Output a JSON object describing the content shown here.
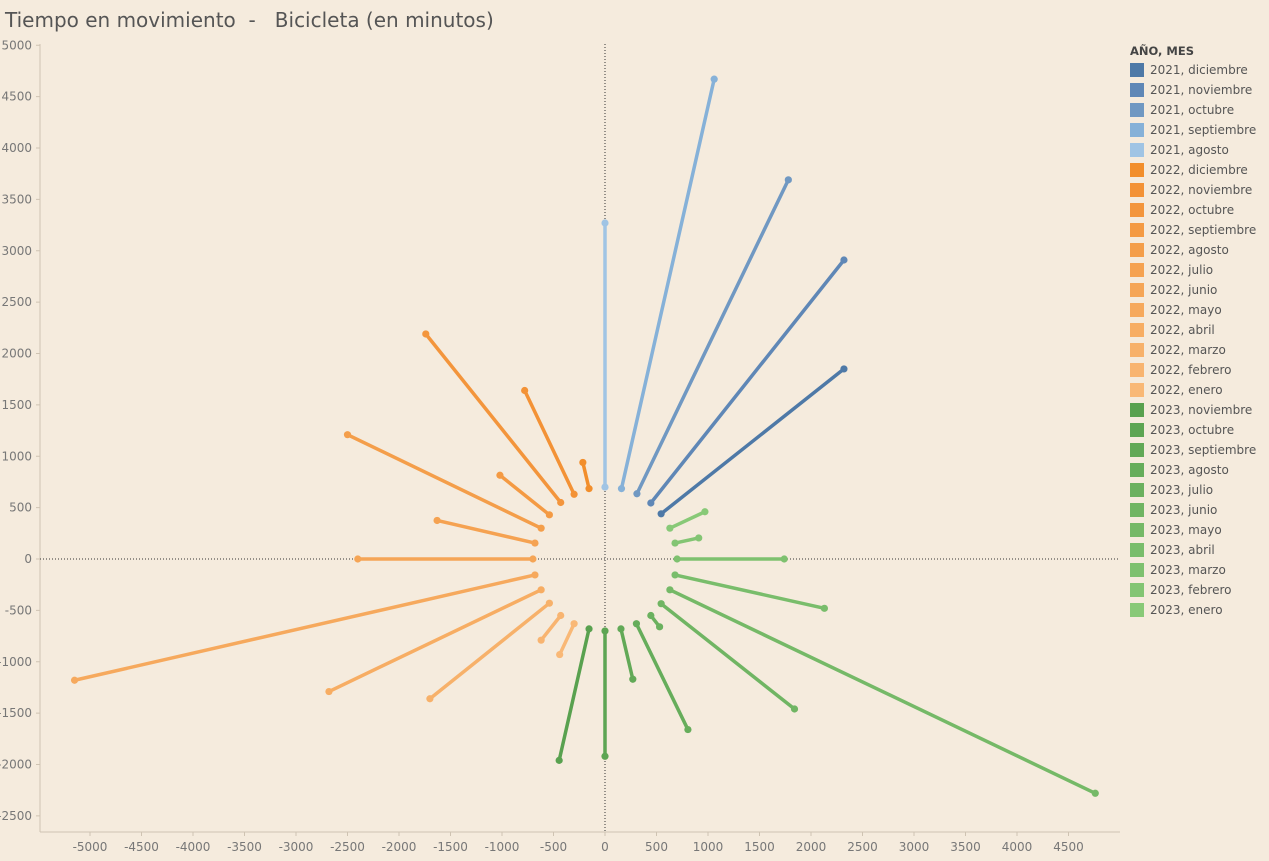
{
  "title": "Tiempo en movimiento  -   Bicicleta (en minutos)",
  "legend": {
    "title": "AÑO, MES",
    "items": [
      {
        "label": "2021, diciembre",
        "color": "#4e79a7"
      },
      {
        "label": "2021, noviembre",
        "color": "#5f87b6"
      },
      {
        "label": "2021, octubre",
        "color": "#7098c2"
      },
      {
        "label": "2021, septiembre",
        "color": "#86b1d8"
      },
      {
        "label": "2021, agosto",
        "color": "#a0c4e4"
      },
      {
        "label": "2022, diciembre",
        "color": "#f28e2b"
      },
      {
        "label": "2022, noviembre",
        "color": "#f39236"
      },
      {
        "label": "2022, octubre",
        "color": "#f3953c"
      },
      {
        "label": "2022, septiembre",
        "color": "#f49a43"
      },
      {
        "label": "2022, agosto",
        "color": "#f49e4a"
      },
      {
        "label": "2022, julio",
        "color": "#f5a251"
      },
      {
        "label": "2022, junio",
        "color": "#f5a556"
      },
      {
        "label": "2022, mayo",
        "color": "#f6a95d"
      },
      {
        "label": "2022, abril",
        "color": "#f7ad63"
      },
      {
        "label": "2022, marzo",
        "color": "#f7b16a"
      },
      {
        "label": "2022, febrero",
        "color": "#f8b470"
      },
      {
        "label": "2022, enero",
        "color": "#f9b876"
      },
      {
        "label": "2023, noviembre",
        "color": "#59a14f"
      },
      {
        "label": "2023, octubre",
        "color": "#5da553"
      },
      {
        "label": "2023, septiembre",
        "color": "#62a957"
      },
      {
        "label": "2023, agosto",
        "color": "#66ad5b"
      },
      {
        "label": "2023, julio",
        "color": "#6bb15f"
      },
      {
        "label": "2023, junio",
        "color": "#70b563"
      },
      {
        "label": "2023, mayo",
        "color": "#75b967"
      },
      {
        "label": "2023, abril",
        "color": "#79bd6b"
      },
      {
        "label": "2023, marzo",
        "color": "#7ec16f"
      },
      {
        "label": "2023, febrero",
        "color": "#83c573"
      },
      {
        "label": "2023, enero",
        "color": "#88c977"
      }
    ]
  },
  "chart_data": {
    "type": "line",
    "title": "Tiempo en movimiento  -   Bicicleta (en minutos)",
    "xlim": [
      -5600,
      5000
    ],
    "ylim": [
      -2700,
      5100
    ],
    "x_ticks": [
      -5000,
      -4500,
      -4000,
      -3500,
      -3000,
      -2500,
      -2000,
      -1500,
      -1000,
      -500,
      0,
      500,
      1000,
      1500,
      2000,
      2500,
      3000,
      3500,
      4000,
      4500
    ],
    "y_ticks": [
      5000,
      4500,
      4000,
      3500,
      3000,
      2500,
      2000,
      1500,
      1000,
      500,
      0,
      -500,
      -1000,
      -1500,
      -2000,
      -2500
    ],
    "series": [
      {
        "name": "2021, agosto",
        "color": "#a0c4e4",
        "points": [
          [
            0,
            700
          ],
          [
            0,
            3270
          ]
        ]
      },
      {
        "name": "2021, septiembre",
        "color": "#86b1d8",
        "points": [
          [
            160,
            685
          ],
          [
            1060,
            4670
          ]
        ]
      },
      {
        "name": "2021, octubre",
        "color": "#7098c2",
        "points": [
          [
            310,
            635
          ],
          [
            1780,
            3690
          ]
        ]
      },
      {
        "name": "2021, noviembre",
        "color": "#5f87b6",
        "points": [
          [
            445,
            545
          ],
          [
            2320,
            2910
          ]
        ]
      },
      {
        "name": "2021, diciembre",
        "color": "#4e79a7",
        "points": [
          [
            545,
            440
          ],
          [
            2320,
            1850
          ]
        ]
      },
      {
        "name": "2022, enero",
        "color": "#f9b876",
        "points": [
          [
            -300,
            -630
          ],
          [
            -440,
            -930
          ]
        ]
      },
      {
        "name": "2022, febrero",
        "color": "#f8b470",
        "points": [
          [
            -430,
            -550
          ],
          [
            -620,
            -790
          ]
        ]
      },
      {
        "name": "2022, marzo",
        "color": "#f7b16a",
        "points": [
          [
            -540,
            -430
          ],
          [
            -1700,
            -1360
          ]
        ]
      },
      {
        "name": "2022, abril",
        "color": "#f7ad63",
        "points": [
          [
            -620,
            -300
          ],
          [
            -2680,
            -1290
          ]
        ]
      },
      {
        "name": "2022, mayo",
        "color": "#f6a95d",
        "points": [
          [
            -680,
            -155
          ],
          [
            -5150,
            -1180
          ]
        ]
      },
      {
        "name": "2022, junio",
        "color": "#f5a556",
        "points": [
          [
            -700,
            0
          ],
          [
            -2400,
            0
          ]
        ]
      },
      {
        "name": "2022, julio",
        "color": "#f5a251",
        "points": [
          [
            -680,
            155
          ],
          [
            -1630,
            375
          ]
        ]
      },
      {
        "name": "2022, agosto",
        "color": "#f49e4a",
        "points": [
          [
            -620,
            300
          ],
          [
            -2500,
            1210
          ]
        ]
      },
      {
        "name": "2022, septiembre",
        "color": "#f49a43",
        "points": [
          [
            -540,
            430
          ],
          [
            -1020,
            815
          ]
        ]
      },
      {
        "name": "2022, octubre",
        "color": "#f3953c",
        "points": [
          [
            -430,
            550
          ],
          [
            -1740,
            2190
          ]
        ]
      },
      {
        "name": "2022, noviembre",
        "color": "#f39236",
        "points": [
          [
            -300,
            630
          ],
          [
            -780,
            1640
          ]
        ]
      },
      {
        "name": "2022, diciembre",
        "color": "#f28e2b",
        "points": [
          [
            -155,
            685
          ],
          [
            -215,
            940
          ]
        ]
      },
      {
        "name": "2023, enero",
        "color": "#88c977",
        "points": [
          [
            630,
            300
          ],
          [
            970,
            460
          ]
        ]
      },
      {
        "name": "2023, febrero",
        "color": "#83c573",
        "points": [
          [
            680,
            155
          ],
          [
            910,
            205
          ]
        ]
      },
      {
        "name": "2023, marzo",
        "color": "#7ec16f",
        "points": [
          [
            700,
            0
          ],
          [
            1740,
            0
          ]
        ]
      },
      {
        "name": "2023, abril",
        "color": "#79bd6b",
        "points": [
          [
            680,
            -155
          ],
          [
            2130,
            -480
          ]
        ]
      },
      {
        "name": "2023, mayo",
        "color": "#75b967",
        "points": [
          [
            630,
            -300
          ],
          [
            4760,
            -2280
          ]
        ]
      },
      {
        "name": "2023, junio",
        "color": "#70b563",
        "points": [
          [
            545,
            -435
          ],
          [
            1840,
            -1460
          ]
        ]
      },
      {
        "name": "2023, julio",
        "color": "#6bb15f",
        "points": [
          [
            445,
            -550
          ],
          [
            530,
            -660
          ]
        ]
      },
      {
        "name": "2023, agosto",
        "color": "#66ad5b",
        "points": [
          [
            305,
            -630
          ],
          [
            805,
            -1660
          ]
        ]
      },
      {
        "name": "2023, septiembre",
        "color": "#62a957",
        "points": [
          [
            155,
            -680
          ],
          [
            270,
            -1170
          ]
        ]
      },
      {
        "name": "2023, octubre",
        "color": "#5da553",
        "points": [
          [
            0,
            -700
          ],
          [
            0,
            -1920
          ]
        ]
      },
      {
        "name": "2023, noviembre",
        "color": "#59a14f",
        "points": [
          [
            -155,
            -680
          ],
          [
            -445,
            -1960
          ]
        ]
      }
    ]
  }
}
